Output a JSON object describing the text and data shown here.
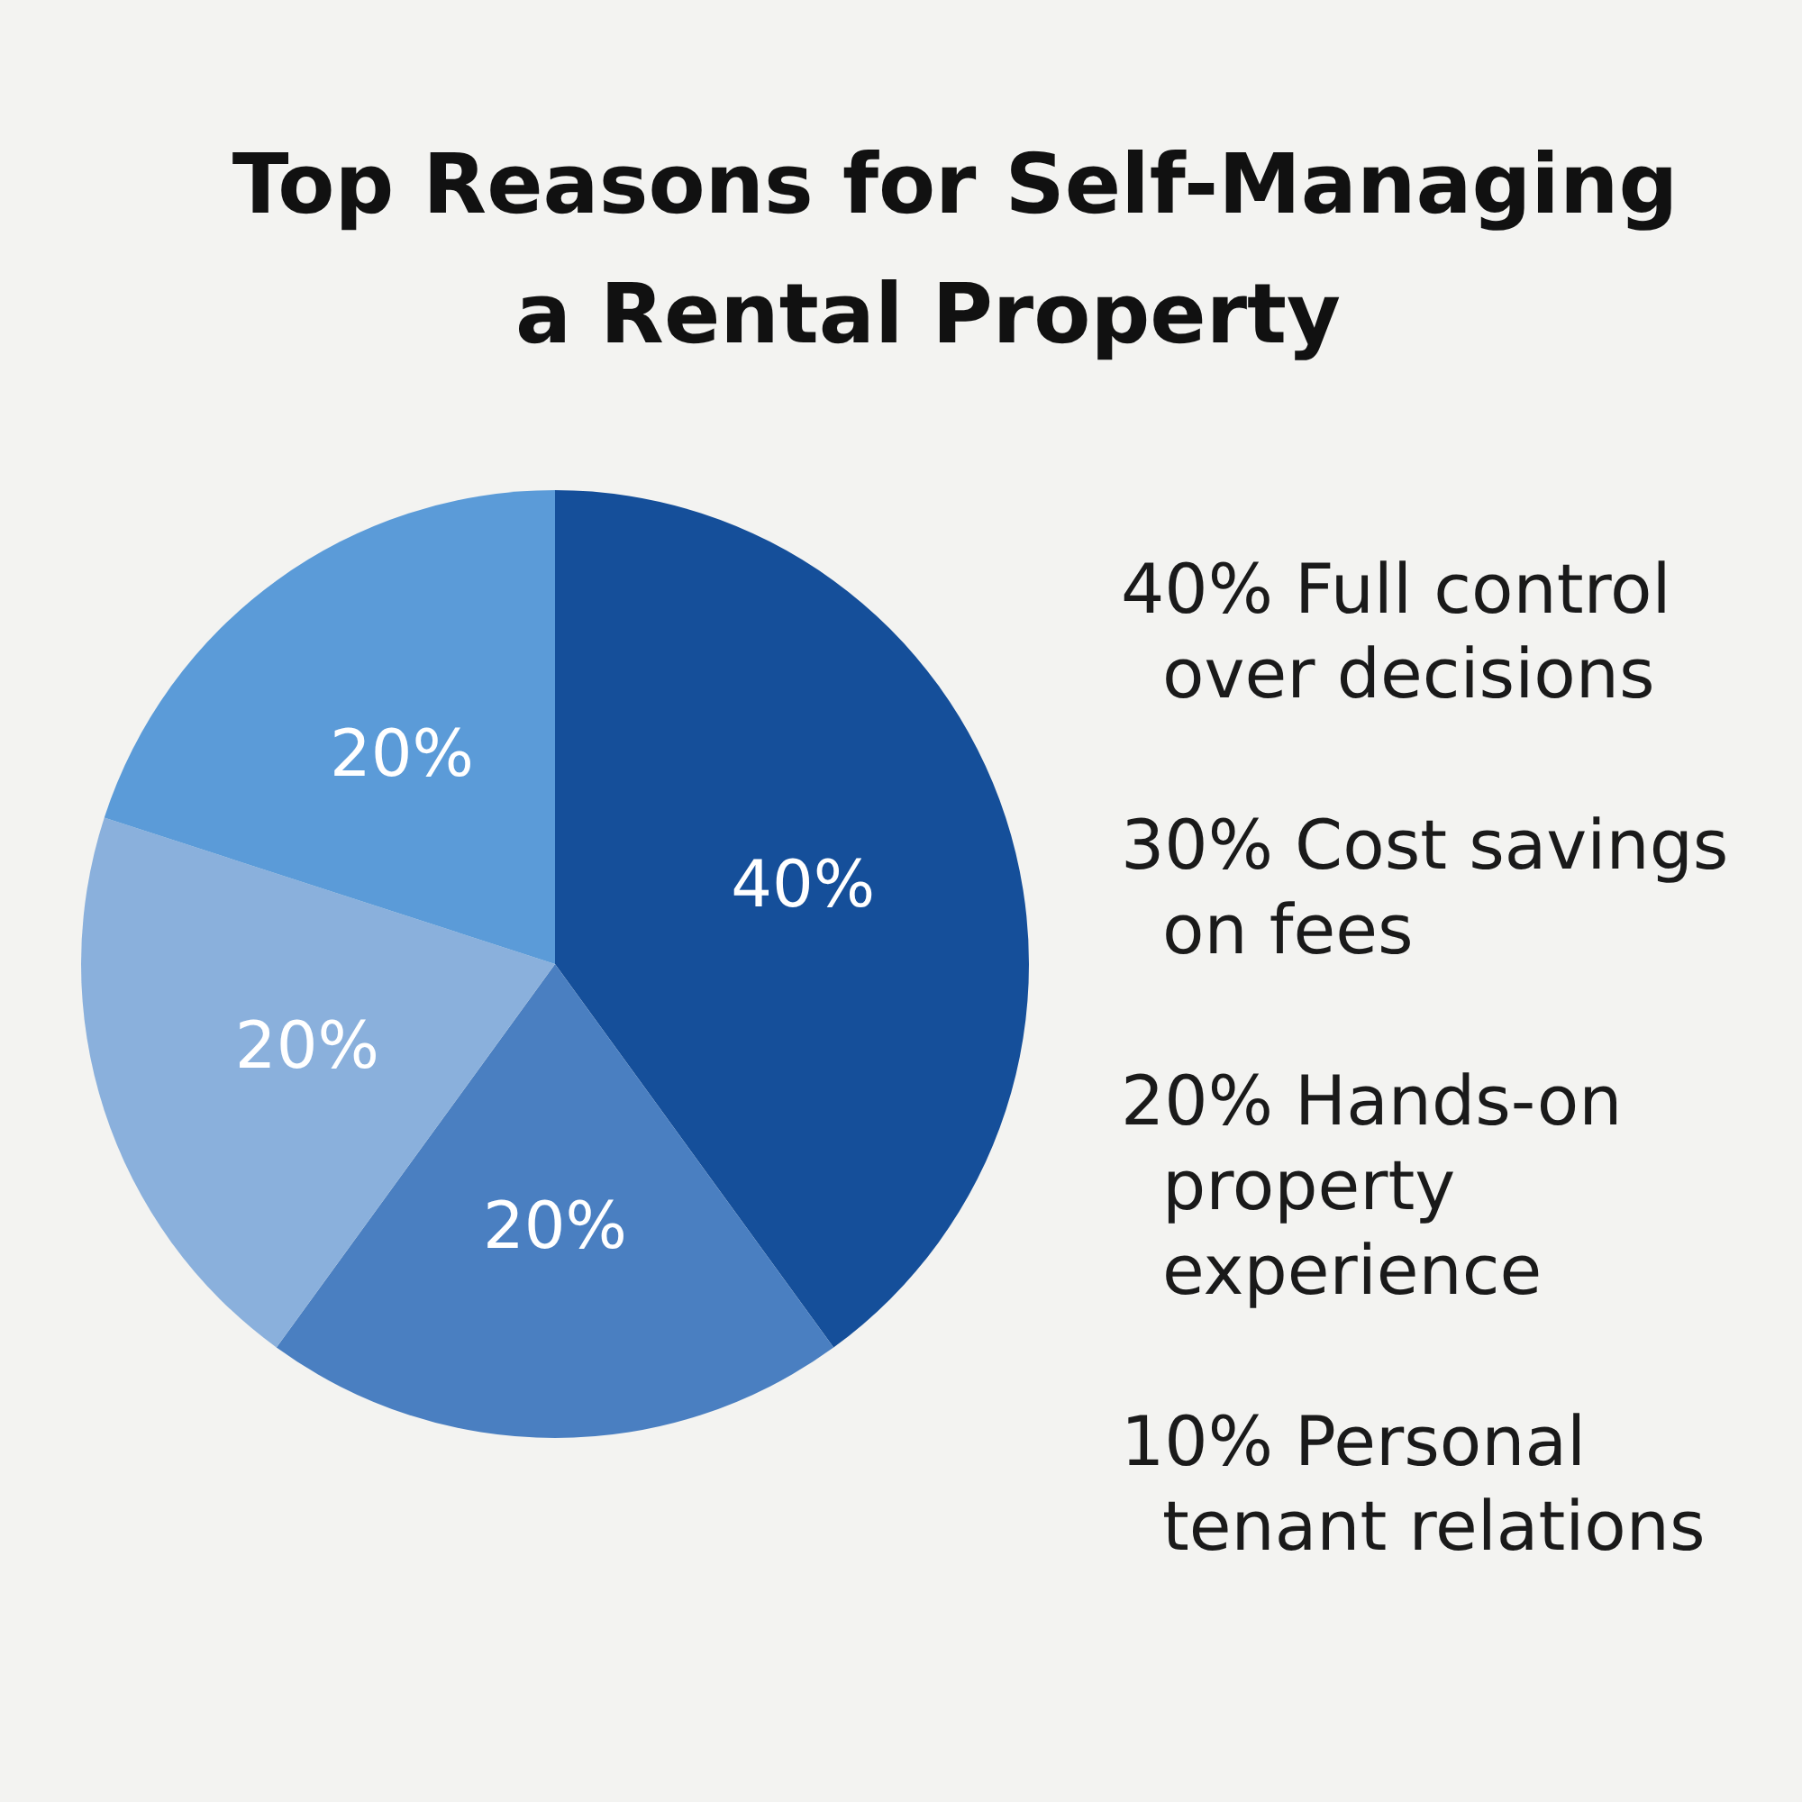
{
  "chart_data": {
    "type": "pie",
    "title": "Top Reasons for Self-Managing\na Rental Property",
    "categories": [
      null,
      null,
      null,
      null
    ],
    "values": [
      40,
      20,
      20,
      20
    ],
    "colors": [
      "#154f9a",
      "#4a7fc1",
      "#8ab0dc",
      "#5b9bd8"
    ],
    "value_labels": [
      "40%",
      "20%",
      "20%",
      "20%"
    ],
    "annotations": [
      "40%  Full control\nover decisions",
      "30%  Cost savings\non fees",
      "20%  Hands-on\nproperty\nexperience",
      "10%  Personal\ntenant relations"
    ]
  }
}
